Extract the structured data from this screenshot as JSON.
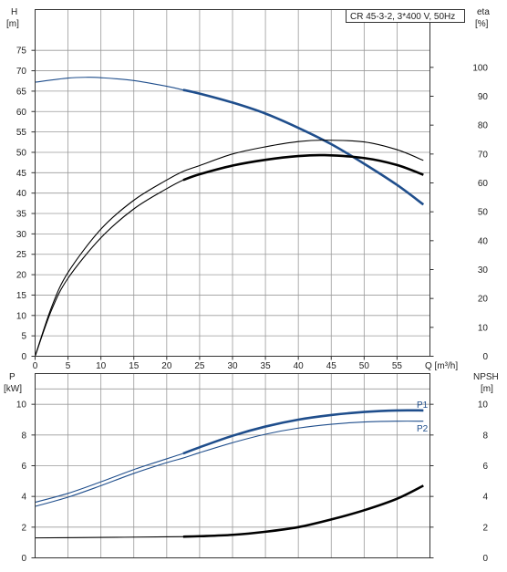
{
  "chart_data": [
    {
      "type": "line",
      "panel": "top",
      "legend": "CR 45-3-2, 3*400 V, 50Hz",
      "legend_position": "top-right",
      "grid": true,
      "x_axis": {
        "label": "Q [m³/h]",
        "range": [
          0,
          60
        ],
        "ticks": [
          0,
          5,
          10,
          15,
          20,
          25,
          30,
          35,
          40,
          45,
          50,
          55
        ]
      },
      "y_left": {
        "label": "H",
        "unit": "[m]",
        "range": [
          0,
          85
        ],
        "ticks": [
          0,
          5,
          10,
          15,
          20,
          25,
          30,
          35,
          40,
          45,
          50,
          55,
          60,
          65,
          70,
          75
        ]
      },
      "y_right": {
        "label": "eta",
        "unit": "[%]",
        "range": [
          0,
          120
        ],
        "ticks": [
          0,
          10,
          20,
          30,
          40,
          50,
          60,
          70,
          80,
          90,
          100
        ]
      },
      "series": [
        {
          "axis": "left",
          "color": "#1f4e8c",
          "x": [
            0,
            5,
            8,
            10,
            15,
            20,
            22.5,
            25,
            30,
            35,
            40,
            45,
            50,
            55,
            59
          ],
          "y": [
            67.2,
            68.2,
            68.4,
            68.3,
            67.6,
            66.2,
            65.3,
            64.4,
            62.2,
            59.5,
            56.0,
            52.0,
            47.2,
            42.0,
            37.2
          ],
          "highlight_from": 22.5
        },
        {
          "axis": "right",
          "color": "#000000",
          "x": [
            0,
            2.5,
            5,
            10,
            15,
            20,
            22.5,
            25,
            30,
            35,
            40,
            44,
            50,
            55,
            59
          ],
          "y": [
            0,
            16,
            27,
            41,
            51,
            58,
            61,
            63,
            66,
            68,
            69.3,
            69.6,
            68.6,
            66.2,
            62.8
          ],
          "highlight_from": 22.5
        },
        {
          "axis": "right",
          "color": "#000000",
          "x": [
            0,
            2.5,
            5,
            10,
            15,
            20,
            22.5,
            25,
            30,
            35,
            40,
            44,
            50,
            55,
            59
          ],
          "y": [
            0,
            17,
            29,
            44,
            54,
            61,
            64,
            66,
            70,
            72.5,
            74.3,
            74.8,
            74.2,
            71.5,
            67.8
          ],
          "highlight_from": 59
        }
      ]
    },
    {
      "type": "line",
      "panel": "bottom",
      "grid": true,
      "x_axis": {
        "range": [
          0,
          60
        ]
      },
      "y_left": {
        "label": "P",
        "unit": "[kW]",
        "range": [
          0,
          12
        ],
        "ticks": [
          0,
          2,
          4,
          6,
          8,
          10
        ]
      },
      "y_right": {
        "label": "NPSH",
        "unit": "[m]",
        "range": [
          0,
          12
        ],
        "ticks": [
          0,
          2,
          4,
          6,
          8,
          10
        ]
      },
      "series": [
        {
          "name": "P1",
          "axis": "left",
          "color": "#1f4e8c",
          "x": [
            0,
            5,
            10,
            15,
            20,
            22.5,
            25,
            30,
            35,
            40,
            45,
            50,
            55,
            59
          ],
          "y": [
            3.62,
            4.2,
            4.95,
            5.75,
            6.45,
            6.8,
            7.2,
            7.95,
            8.55,
            9.0,
            9.3,
            9.5,
            9.6,
            9.6
          ],
          "highlight_from": 22.5
        },
        {
          "name": "P2",
          "axis": "left",
          "color": "#1f4e8c",
          "x": [
            0,
            5,
            10,
            15,
            20,
            22.5,
            25,
            30,
            35,
            40,
            45,
            50,
            55,
            59
          ],
          "y": [
            3.35,
            3.95,
            4.7,
            5.5,
            6.2,
            6.5,
            6.85,
            7.5,
            8.05,
            8.45,
            8.7,
            8.85,
            8.9,
            8.9
          ],
          "highlight_from": 59
        },
        {
          "axis": "right",
          "color": "#000000",
          "x": [
            0,
            10,
            20,
            22.5,
            25,
            30,
            35,
            40,
            45,
            50,
            55,
            59
          ],
          "y": [
            1.3,
            1.33,
            1.37,
            1.38,
            1.41,
            1.5,
            1.7,
            2.0,
            2.5,
            3.1,
            3.85,
            4.7
          ],
          "highlight_from": 22.5
        }
      ]
    }
  ]
}
